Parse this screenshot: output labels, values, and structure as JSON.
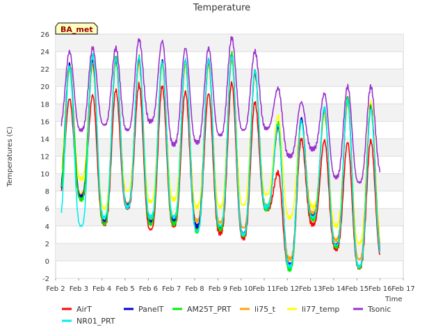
{
  "chart_data": {
    "type": "line",
    "title": "Temperature",
    "xlabel": "Time",
    "ylabel": "Temperatures (C)",
    "site_badge": "BA_met",
    "ylim": [
      -2,
      26
    ],
    "xlim": [
      2,
      17
    ],
    "x_unit": "day of Feb",
    "x_ticks": [
      2,
      3,
      4,
      5,
      6,
      7,
      8,
      9,
      10,
      11,
      12,
      13,
      14,
      15,
      16,
      17
    ],
    "x_tick_labels": [
      "Feb 2",
      "Feb 3",
      "Feb 4",
      "Feb 5",
      "Feb 6",
      "Feb 7",
      "Feb 8",
      "Feb 9",
      "Feb 10",
      "Feb 11",
      "Feb 12",
      "Feb 13",
      "Feb 14",
      "Feb 15",
      "Feb 16",
      "Feb 17"
    ],
    "y_ticks": [
      -2,
      0,
      2,
      4,
      6,
      8,
      10,
      12,
      14,
      16,
      18,
      20,
      22,
      24,
      26
    ],
    "grid": true,
    "legend_position": "bottom",
    "day_min_max": {
      "AirT": {
        "min": [
          7.2,
          4.2,
          6.0,
          3.6,
          4.0,
          3.8,
          3.2,
          2.6,
          5.8,
          -0.8,
          4.2,
          1.4,
          -0.8,
          0.2,
          2.0
        ],
        "max": [
          18.6,
          19.0,
          19.6,
          20.2,
          20.0,
          19.4,
          19.2,
          20.4,
          18.2,
          10.2,
          14.0,
          13.8,
          13.6,
          13.8,
          13.8
        ]
      },
      "PanelT": {
        "min": [
          7.4,
          4.6,
          6.4,
          4.4,
          4.6,
          4.0,
          3.8,
          3.2,
          6.0,
          -0.5,
          5.0,
          1.8,
          -0.6,
          0.8,
          1.4
        ],
        "max": [
          22.6,
          23.0,
          23.2,
          23.2,
          23.0,
          23.0,
          23.0,
          23.6,
          21.6,
          15.4,
          16.4,
          17.4,
          18.6,
          17.6,
          18.0
        ]
      },
      "AM25T_PRT": {
        "min": [
          7.0,
          4.2,
          6.2,
          4.2,
          4.2,
          3.4,
          3.6,
          2.8,
          5.8,
          -1.0,
          4.8,
          1.6,
          -0.8,
          0.6,
          0.6
        ],
        "max": [
          22.4,
          23.6,
          23.4,
          23.4,
          22.8,
          23.0,
          23.0,
          23.8,
          21.8,
          15.8,
          16.0,
          17.6,
          18.8,
          17.6,
          17.6
        ]
      },
      "li75_t": {
        "min": [
          7.6,
          4.6,
          6.6,
          4.8,
          5.0,
          4.6,
          4.4,
          3.8,
          6.4,
          0.2,
          5.4,
          2.4,
          0.2,
          1.6,
          1.6
        ],
        "max": [
          22.0,
          22.6,
          22.8,
          22.8,
          22.6,
          22.6,
          22.6,
          23.0,
          21.4,
          15.0,
          16.0,
          17.0,
          18.2,
          17.8,
          17.6
        ]
      },
      "li77_temp": {
        "min": [
          9.4,
          6.0,
          8.0,
          6.8,
          7.0,
          6.2,
          6.2,
          6.4,
          7.6,
          5.0,
          6.2,
          4.0,
          2.0,
          2.6,
          5.4
        ],
        "max": [
          21.6,
          22.2,
          22.6,
          22.6,
          22.2,
          22.2,
          22.2,
          23.0,
          21.4,
          16.6,
          16.2,
          16.6,
          17.8,
          18.2,
          17.2
        ]
      },
      "NR01_PRT": {
        "min": [
          4.0,
          5.0,
          6.2,
          5.0,
          5.0,
          3.4,
          4.0,
          3.0,
          6.2,
          -0.6,
          5.0,
          1.8,
          -0.6,
          0.6,
          1.0
        ],
        "max": [
          22.2,
          23.6,
          23.2,
          23.4,
          22.8,
          23.0,
          23.0,
          23.4,
          21.8,
          15.6,
          16.0,
          17.6,
          18.4,
          17.4,
          17.4
        ]
      },
      "Tsonic": {
        "min": [
          15.0,
          15.6,
          15.0,
          16.0,
          13.4,
          13.6,
          14.4,
          15.0,
          15.2,
          12.0,
          12.8,
          9.6,
          9.0,
          10.0,
          12.0
        ],
        "max": [
          24.0,
          24.4,
          24.4,
          25.4,
          25.2,
          24.4,
          24.4,
          25.6,
          24.0,
          19.8,
          18.2,
          19.2,
          20.0,
          20.0,
          20.0
        ]
      }
    },
    "series": [
      {
        "name": "AirT",
        "color": "#ff0000"
      },
      {
        "name": "PanelT",
        "color": "#0000cc"
      },
      {
        "name": "AM25T_PRT",
        "color": "#00ee00"
      },
      {
        "name": "li75_t",
        "color": "#ffa500"
      },
      {
        "name": "li77_temp",
        "color": "#ffff00"
      },
      {
        "name": "Tsonic",
        "color": "#9932cc"
      },
      {
        "name": "NR01_PRT",
        "color": "#00eeee"
      }
    ]
  }
}
